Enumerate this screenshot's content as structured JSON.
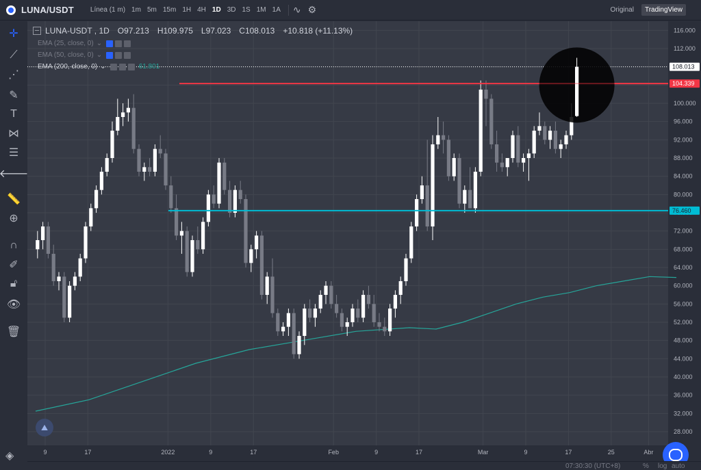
{
  "header": {
    "symbol": "LUNA/USDT",
    "chart_style": "Línea (1 m)",
    "timeframes": [
      "1m",
      "5m",
      "15m",
      "1H",
      "4H",
      "1D",
      "3D",
      "1S",
      "1M",
      "1A"
    ],
    "active_timeframe": "1D",
    "view_original": "Original",
    "view_tradingview": "TradingView"
  },
  "legend": {
    "title": "LUNA-USDT , 1D",
    "open": "O97.213",
    "high": "H109.975",
    "low": "L97.023",
    "close": "C108.013",
    "change": "+10.818 (+11.13%)",
    "ema25": "EMA (25, close, 0)",
    "ema50": "EMA (50, close, 0)",
    "ema200": "EMA (200, close, 0)",
    "ema200_value": "61.801"
  },
  "footer": {
    "time": "07:30:30 (UTC+8)",
    "percent": "%",
    "log": "log",
    "auto": "auto"
  },
  "colors": {
    "background": "#363a45",
    "candle_up": "#ffffff",
    "candle_down": "#787b86",
    "ema200": "#26a69a",
    "resistance": "#f23645",
    "support": "#00bcd4"
  },
  "chart_data": {
    "type": "candlestick",
    "y_range": [
      25,
      118
    ],
    "y_ticks": [
      28,
      32,
      36,
      40,
      44,
      48,
      52,
      56,
      60,
      64,
      68,
      72,
      76,
      80,
      84,
      88,
      92,
      96,
      100,
      104,
      108,
      112,
      116
    ],
    "x_tick_labels": [
      {
        "day": 0,
        "label": "9"
      },
      {
        "day": 8,
        "label": "17"
      },
      {
        "day": 23,
        "label": "2022"
      },
      {
        "day": 31,
        "label": "9"
      },
      {
        "day": 39,
        "label": "17"
      },
      {
        "day": 54,
        "label": "Feb"
      },
      {
        "day": 62,
        "label": "9"
      },
      {
        "day": 70,
        "label": "17"
      },
      {
        "day": 82,
        "label": "Mar"
      },
      {
        "day": 90,
        "label": "9"
      },
      {
        "day": 98,
        "label": "17"
      },
      {
        "day": 106,
        "label": "25"
      },
      {
        "day": 113,
        "label": "Abr"
      }
    ],
    "candles": [
      [
        68,
        72,
        66,
        70
      ],
      [
        70,
        74,
        68,
        73
      ],
      [
        73,
        74,
        66,
        67
      ],
      [
        67,
        69,
        60,
        61
      ],
      [
        61,
        63,
        59,
        62
      ],
      [
        62,
        63,
        52,
        53
      ],
      [
        53,
        61,
        52,
        60
      ],
      [
        60,
        63,
        59,
        62
      ],
      [
        62,
        67,
        61,
        66
      ],
      [
        66,
        74,
        65,
        73
      ],
      [
        73,
        78,
        72,
        77
      ],
      [
        77,
        82,
        76,
        81
      ],
      [
        81,
        86,
        80,
        85
      ],
      [
        85,
        89,
        84,
        88
      ],
      [
        88,
        96,
        87,
        94
      ],
      [
        94,
        101,
        93,
        97
      ],
      [
        97,
        100,
        95,
        98
      ],
      [
        98,
        101,
        96,
        99
      ],
      [
        99,
        102,
        89,
        90
      ],
      [
        90,
        91,
        84,
        85
      ],
      [
        85,
        87,
        83,
        86
      ],
      [
        86,
        88,
        84,
        85
      ],
      [
        85,
        91,
        84,
        90
      ],
      [
        90,
        93,
        88,
        89
      ],
      [
        89,
        90,
        81,
        82
      ],
      [
        82,
        84,
        76,
        77
      ],
      [
        77,
        80,
        70,
        71
      ],
      [
        71,
        74,
        67,
        72
      ],
      [
        72,
        73,
        62,
        63
      ],
      [
        63,
        71,
        62,
        70
      ],
      [
        70,
        73,
        67,
        68
      ],
      [
        68,
        75,
        67,
        74
      ],
      [
        74,
        81,
        73,
        80
      ],
      [
        80,
        82,
        77,
        78
      ],
      [
        78,
        88,
        77,
        87
      ],
      [
        87,
        88,
        80,
        81
      ],
      [
        81,
        83,
        75,
        76
      ],
      [
        76,
        82,
        75,
        81
      ],
      [
        81,
        83,
        78,
        79
      ],
      [
        79,
        80,
        64,
        65
      ],
      [
        65,
        69,
        63,
        68
      ],
      [
        68,
        72,
        66,
        71
      ],
      [
        71,
        72,
        57,
        58
      ],
      [
        58,
        63,
        56,
        62
      ],
      [
        62,
        66,
        53,
        54
      ],
      [
        54,
        55,
        49,
        50
      ],
      [
        50,
        52,
        49,
        51
      ],
      [
        51,
        55,
        49,
        54
      ],
      [
        54,
        55,
        44,
        45
      ],
      [
        45,
        50,
        44,
        49
      ],
      [
        49,
        56,
        47,
        55
      ],
      [
        55,
        57,
        52,
        53
      ],
      [
        53,
        56,
        51,
        55
      ],
      [
        55,
        59,
        54,
        58
      ],
      [
        58,
        61,
        56,
        60
      ],
      [
        60,
        61,
        55,
        56
      ],
      [
        56,
        58,
        53,
        54
      ],
      [
        54,
        55,
        50,
        51
      ],
      [
        51,
        53,
        49,
        52
      ],
      [
        52,
        56,
        51,
        55
      ],
      [
        55,
        57,
        52,
        53
      ],
      [
        53,
        59,
        52,
        58
      ],
      [
        58,
        60,
        55,
        56
      ],
      [
        56,
        58,
        51,
        52
      ],
      [
        52,
        54,
        50,
        51
      ],
      [
        51,
        53,
        49,
        50
      ],
      [
        50,
        56,
        49,
        55
      ],
      [
        55,
        59,
        53,
        58
      ],
      [
        58,
        62,
        56,
        61
      ],
      [
        61,
        67,
        60,
        66
      ],
      [
        66,
        74,
        65,
        73
      ],
      [
        73,
        80,
        72,
        79
      ],
      [
        79,
        84,
        78,
        82
      ],
      [
        82,
        92,
        72,
        73
      ],
      [
        73,
        93,
        70,
        91
      ],
      [
        91,
        97,
        90,
        93
      ],
      [
        93,
        96,
        89,
        92
      ],
      [
        92,
        93,
        83,
        84
      ],
      [
        84,
        89,
        83,
        88
      ],
      [
        88,
        89,
        77,
        78
      ],
      [
        78,
        82,
        76,
        81
      ],
      [
        81,
        86,
        77,
        77
      ],
      [
        77,
        86,
        76,
        85
      ],
      [
        85,
        105,
        84,
        103
      ],
      [
        103,
        105,
        95,
        101
      ],
      [
        101,
        102,
        90,
        91
      ],
      [
        91,
        94,
        85,
        87
      ],
      [
        87,
        89,
        85,
        86
      ],
      [
        86,
        88,
        84,
        88
      ],
      [
        88,
        94,
        87,
        93
      ],
      [
        93,
        95,
        86,
        87
      ],
      [
        87,
        89,
        85,
        88
      ],
      [
        88,
        90,
        83,
        89
      ],
      [
        89,
        95,
        88,
        94
      ],
      [
        94,
        98,
        93,
        95
      ],
      [
        95,
        96,
        91,
        92
      ],
      [
        92,
        95,
        90,
        94
      ],
      [
        94,
        96,
        89,
        90
      ],
      [
        90,
        92,
        88,
        91
      ],
      [
        91,
        94,
        90,
        93
      ],
      [
        93,
        100,
        92,
        97
      ],
      [
        97.213,
        109.975,
        97.023,
        108.013
      ]
    ],
    "ema200": {
      "days": [
        0,
        10,
        20,
        30,
        40,
        50,
        60,
        70,
        75,
        80,
        85,
        90,
        95,
        100,
        105,
        110,
        115,
        120
      ],
      "values": [
        32.5,
        35,
        39,
        43,
        46,
        48,
        50,
        50.8,
        50.5,
        52,
        54,
        56,
        57.5,
        58.5,
        60,
        61,
        62,
        61.801
      ]
    },
    "ema200_last_day": 120,
    "hlines": [
      {
        "value": 104.339,
        "label": "104.339",
        "color": "#f23645"
      },
      {
        "value": 76.46,
        "label": "76.460",
        "color": "#00bcd4"
      }
    ],
    "last_price": {
      "value": 108.013,
      "label": "108.013"
    }
  }
}
